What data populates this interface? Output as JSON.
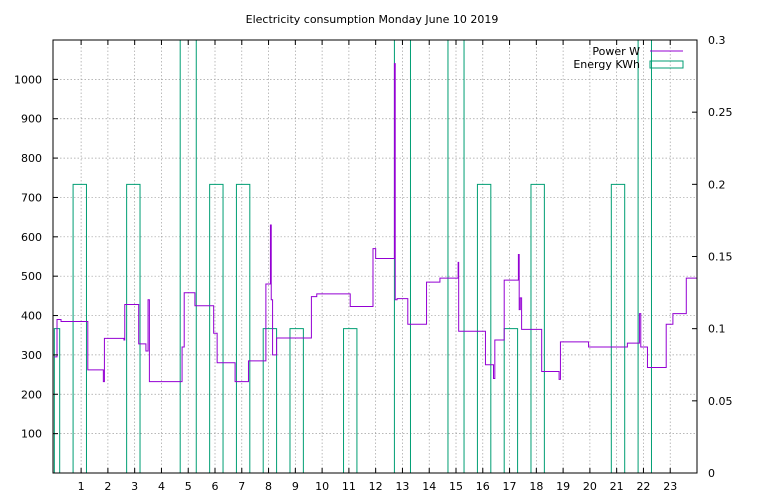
{
  "chart_data": {
    "type": "line",
    "title": "Electricity consumption Monday June 10 2019",
    "xlim": [
      -0.05,
      24.0
    ],
    "ylim": [
      0,
      1100
    ],
    "y2lim": [
      0,
      0.3
    ],
    "grid": true,
    "legend_position": "top-right",
    "x_ticks": [
      1,
      2,
      3,
      4,
      5,
      6,
      7,
      8,
      9,
      10,
      11,
      12,
      13,
      14,
      15,
      16,
      17,
      18,
      19,
      20,
      21,
      22,
      23
    ],
    "y_ticks": [
      100,
      200,
      300,
      400,
      500,
      600,
      700,
      800,
      900,
      1000
    ],
    "y2_ticks": [
      0,
      0.05,
      0.1,
      0.15,
      0.2,
      0.25,
      0.3
    ],
    "y_tick_labels": [
      "100",
      "200",
      "300",
      "400",
      "500",
      "600",
      "700",
      "800",
      "900",
      "1000"
    ],
    "x_tick_labels": [
      "1",
      "2",
      "3",
      "4",
      "5",
      "6",
      "7",
      "8",
      "9",
      "10",
      "11",
      "12",
      "13",
      "14",
      "15",
      "16",
      "17",
      "18",
      "19",
      "20",
      "21",
      "22",
      "23"
    ],
    "y2_tick_labels": [
      "0",
      "0.05",
      "0.1",
      "0.15",
      "0.2",
      "0.25",
      "0.3"
    ],
    "series": [
      {
        "name": "Power W",
        "axis": "y",
        "color": "#9400d3",
        "style": "step",
        "points": [
          [
            0.0,
            295
          ],
          [
            0.1,
            390
          ],
          [
            0.25,
            385
          ],
          [
            1.1,
            385
          ],
          [
            1.25,
            262
          ],
          [
            1.8,
            262
          ],
          [
            1.83,
            232
          ],
          [
            1.87,
            342
          ],
          [
            2.5,
            342
          ],
          [
            2.6,
            338
          ],
          [
            2.63,
            428
          ],
          [
            3.1,
            428
          ],
          [
            3.15,
            328
          ],
          [
            3.4,
            328
          ],
          [
            3.42,
            310
          ],
          [
            3.5,
            440
          ],
          [
            3.55,
            232
          ],
          [
            4.75,
            232
          ],
          [
            4.77,
            320
          ],
          [
            4.85,
            458
          ],
          [
            5.2,
            458
          ],
          [
            5.25,
            425
          ],
          [
            5.9,
            425
          ],
          [
            5.95,
            355
          ],
          [
            6.05,
            355
          ],
          [
            6.08,
            280
          ],
          [
            6.7,
            280
          ],
          [
            6.75,
            232
          ],
          [
            7.2,
            232
          ],
          [
            7.25,
            285
          ],
          [
            7.85,
            285
          ],
          [
            7.9,
            480
          ],
          [
            8.05,
            480
          ],
          [
            8.07,
            630
          ],
          [
            8.1,
            440
          ],
          [
            8.15,
            300
          ],
          [
            8.3,
            343
          ],
          [
            9.5,
            343
          ],
          [
            9.6,
            448
          ],
          [
            9.8,
            455
          ],
          [
            11.0,
            455
          ],
          [
            11.05,
            423
          ],
          [
            11.85,
            423
          ],
          [
            11.9,
            570
          ],
          [
            12.0,
            545
          ],
          [
            12.65,
            545
          ],
          [
            12.7,
            1040
          ],
          [
            12.73,
            440
          ],
          [
            12.8,
            443
          ],
          [
            13.15,
            443
          ],
          [
            13.2,
            378
          ],
          [
            13.85,
            378
          ],
          [
            13.9,
            485
          ],
          [
            14.35,
            485
          ],
          [
            14.4,
            495
          ],
          [
            15.05,
            495
          ],
          [
            15.08,
            535
          ],
          [
            15.1,
            360
          ],
          [
            16.05,
            360
          ],
          [
            16.1,
            275
          ],
          [
            16.35,
            275
          ],
          [
            16.4,
            240
          ],
          [
            16.45,
            338
          ],
          [
            16.75,
            338
          ],
          [
            16.8,
            490
          ],
          [
            17.3,
            490
          ],
          [
            17.33,
            555
          ],
          [
            17.36,
            415
          ],
          [
            17.4,
            445
          ],
          [
            17.45,
            365
          ],
          [
            18.15,
            365
          ],
          [
            18.2,
            258
          ],
          [
            18.8,
            258
          ],
          [
            18.85,
            238
          ],
          [
            18.9,
            333
          ],
          [
            19.9,
            333
          ],
          [
            19.95,
            320
          ],
          [
            21.35,
            320
          ],
          [
            21.4,
            330
          ],
          [
            21.8,
            330
          ],
          [
            21.85,
            405
          ],
          [
            21.9,
            320
          ],
          [
            22.1,
            320
          ],
          [
            22.15,
            268
          ],
          [
            22.8,
            268
          ],
          [
            22.85,
            378
          ],
          [
            23.05,
            378
          ],
          [
            23.1,
            405
          ],
          [
            23.55,
            405
          ],
          [
            23.6,
            495
          ],
          [
            24.0,
            495
          ]
        ]
      },
      {
        "name": "Energy KWh",
        "axis": "y2",
        "color": "#009e73",
        "style": "impulse-box",
        "bars": [
          [
            0.0,
            0.2,
            0.1
          ],
          [
            0.7,
            1.2,
            0.2
          ],
          [
            2.7,
            3.2,
            0.2
          ],
          [
            4.7,
            5.3,
            0.3
          ],
          [
            5.8,
            6.3,
            0.2
          ],
          [
            6.8,
            7.3,
            0.2
          ],
          [
            7.8,
            8.3,
            0.1
          ],
          [
            8.8,
            9.3,
            0.1
          ],
          [
            10.8,
            11.3,
            0.1
          ],
          [
            12.7,
            13.3,
            0.3
          ],
          [
            14.7,
            15.3,
            0.3
          ],
          [
            15.8,
            16.3,
            0.2
          ],
          [
            16.8,
            17.3,
            0.1
          ],
          [
            17.8,
            18.3,
            0.2
          ],
          [
            20.8,
            21.3,
            0.2
          ],
          [
            21.8,
            22.3,
            0.3
          ]
        ]
      }
    ]
  }
}
